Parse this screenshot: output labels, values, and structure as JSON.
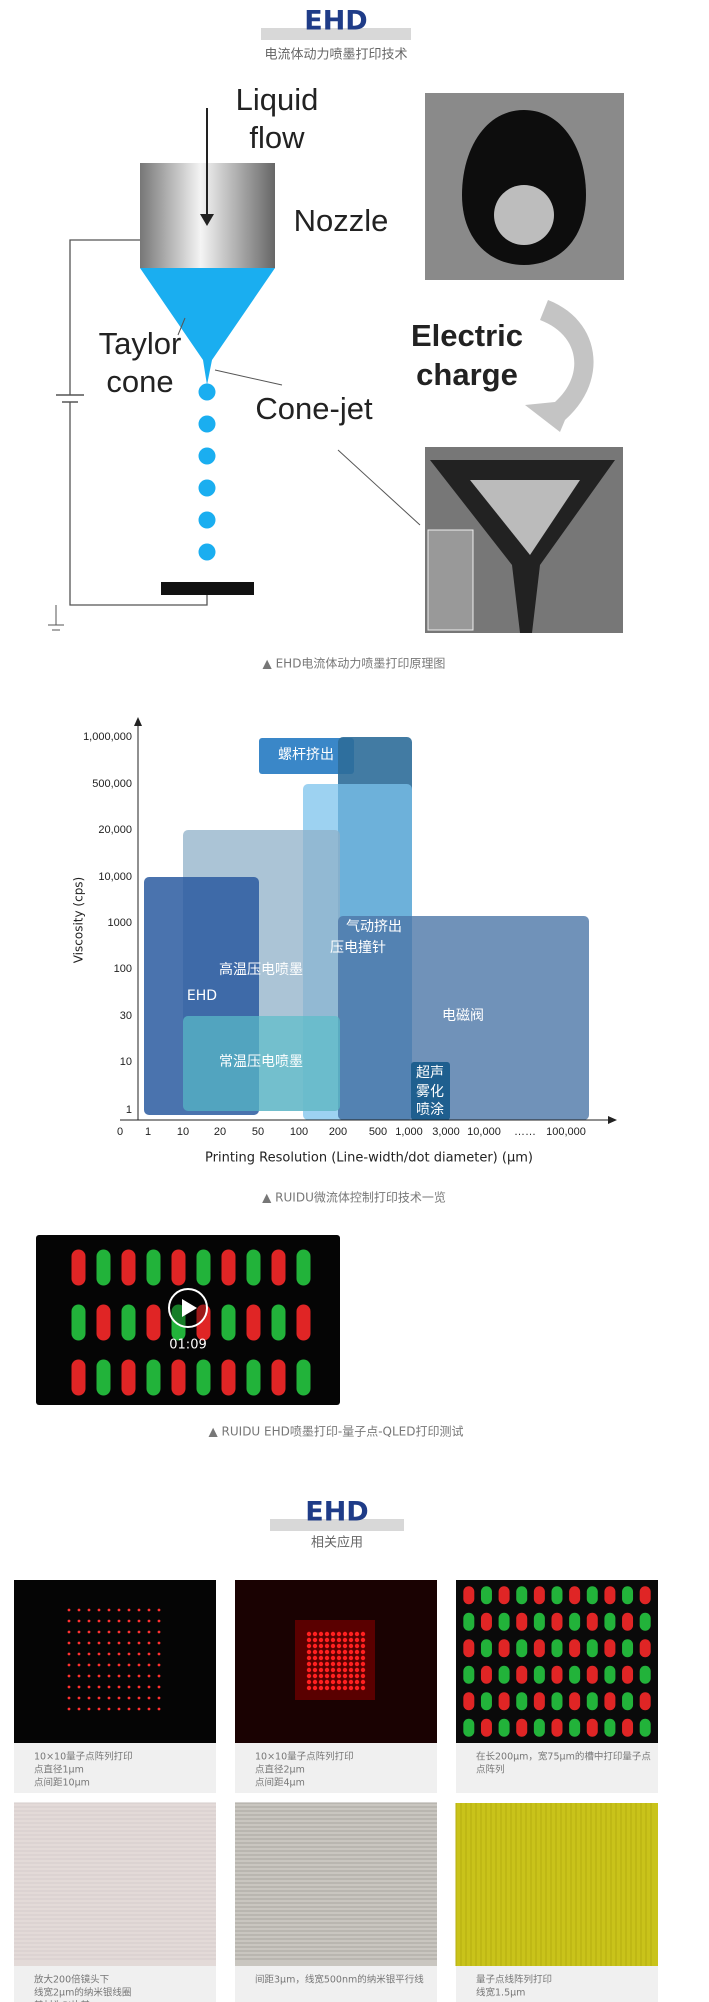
{
  "header": {
    "title": "EHD",
    "subtitle": "电流体动力喷墨打印技术"
  },
  "principle_diagram": {
    "liquid": "Liquid",
    "flow": "flow",
    "nozzle": "Nozzle",
    "taylor": "Taylor",
    "cone": "cone",
    "cone_jet": "Cone-jet",
    "electric": "Electric",
    "charge": "charge",
    "caption": "▲ EHD电流体动力喷墨打印原理图"
  },
  "comparison_chart": {
    "y_axis_label": "Viscosity (cps)",
    "x_axis_label": "Printing Resolution (Line-width/dot  diameter) (μm)",
    "y_tick_labels": [
      "1,000,000",
      "500,000",
      "20,000",
      "10,000",
      "1000",
      "100",
      "30",
      "10",
      "1"
    ],
    "x_tick_labels": [
      "0",
      "1",
      "10",
      "20",
      "50",
      "100",
      "200",
      "500",
      "1,000",
      "3,000",
      "10,000",
      "……",
      "100,000"
    ],
    "regions": [
      "螺杆挤出",
      "气动挤出",
      "压电撞针",
      "高温压电喷墨",
      "EHD",
      "电磁阀",
      "常温压电喷墨",
      "超声",
      "雾化",
      "喷涂"
    ],
    "caption": "▲ RUIDU微流体控制打印技术一览"
  },
  "video": {
    "duration": "01:09",
    "caption": "▲ RUIDU EHD喷墨打印-量子点-QLED打印测试"
  },
  "applications": {
    "title": "EHD",
    "subtitle": "相关应用",
    "items": [
      {
        "caption_lines": [
          "10×10量子点阵列打印",
          "点直径1μm",
          "点间距10μm"
        ]
      },
      {
        "caption_lines": [
          "10×10量子点阵列打印",
          "点直径2μm",
          "点间距4μm"
        ]
      },
      {
        "caption_lines": [
          "在长200μm，宽75μm的槽中打印量子点",
          "点阵列"
        ]
      },
      {
        "caption_lines": [
          "放大200倍镜头下",
          "线宽2μm的纳米银线圈",
          "基材为PI片基"
        ]
      },
      {
        "caption_lines": [
          "间距3μm，线宽500nm的纳米银平行线"
        ]
      },
      {
        "caption_lines": [
          "量子点线阵列打印",
          "线宽1.5μm"
        ]
      }
    ]
  }
}
